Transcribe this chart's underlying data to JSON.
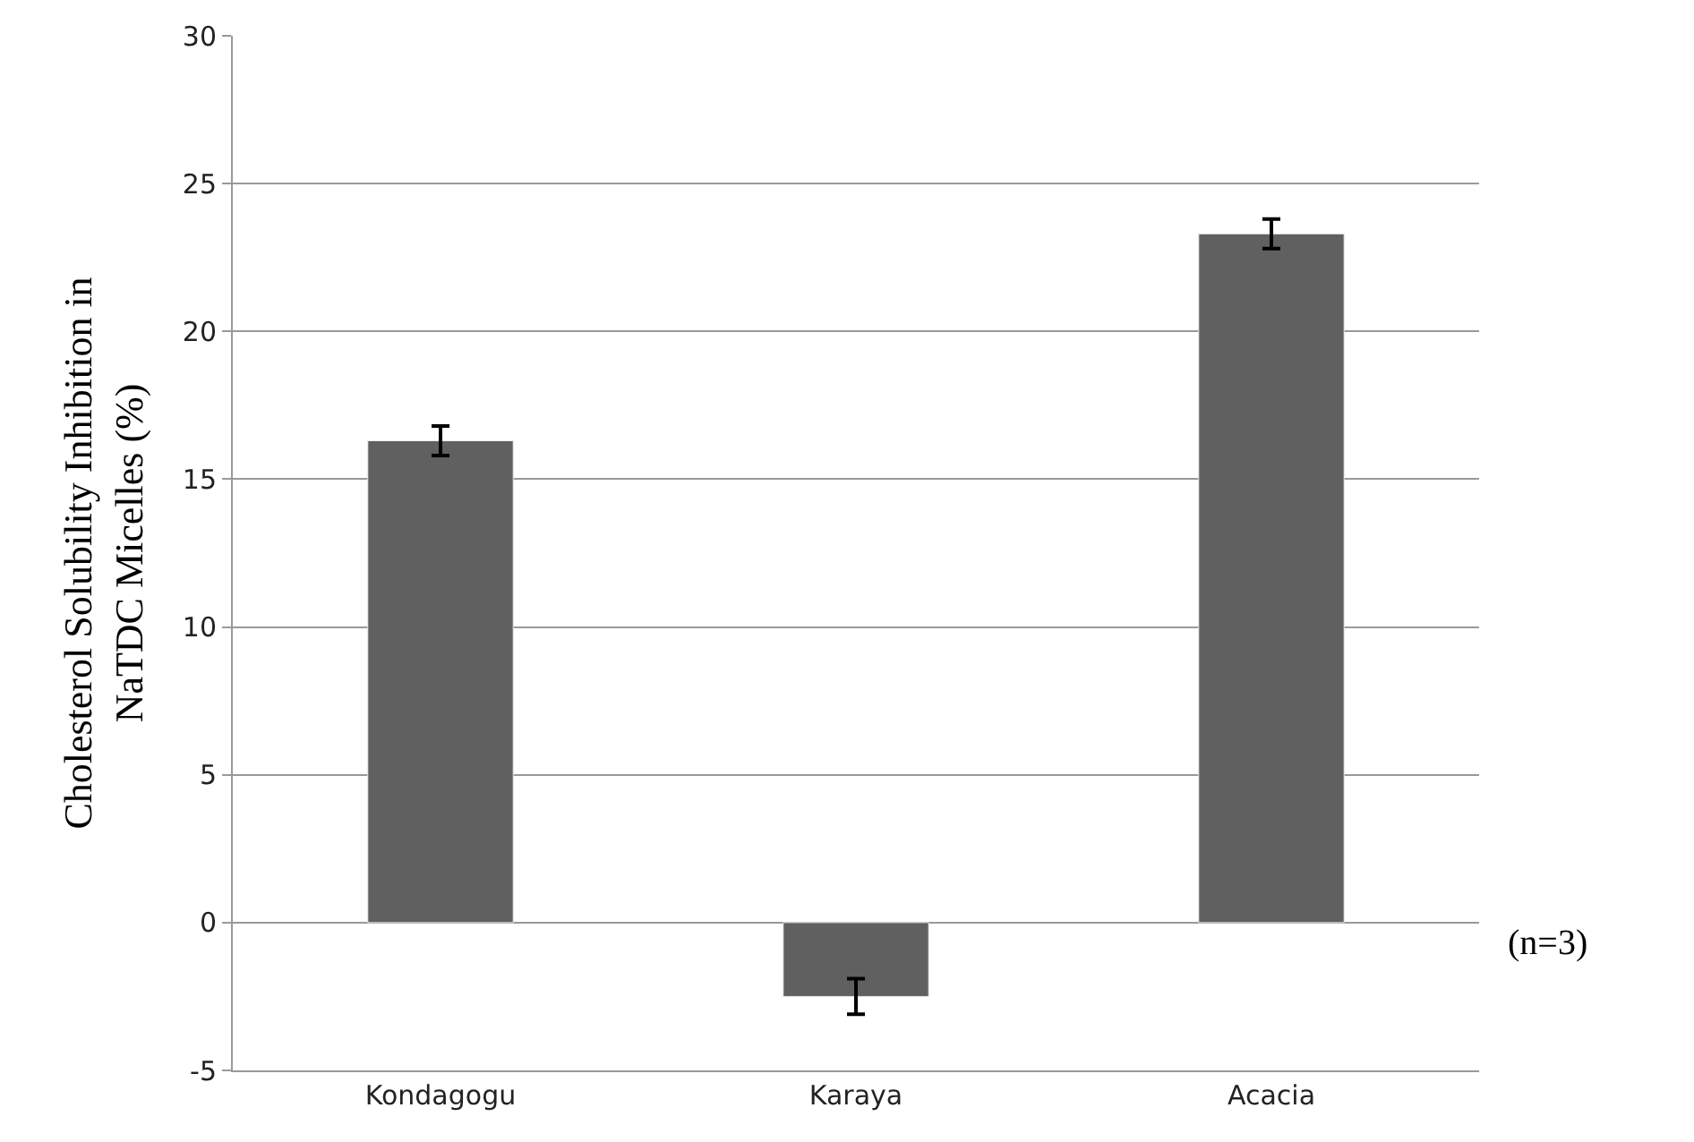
{
  "chart_data": {
    "type": "bar",
    "ylabel": "Cholesterol Solubility Inhibition in NaTDC Micelles (%)",
    "categories": [
      "Kondagogu",
      "Karaya",
      "Acacia"
    ],
    "values": [
      16.3,
      -2.5,
      23.3
    ],
    "color": "#606060",
    "errors": [
      0.5,
      0.6,
      0.5
    ],
    "ylim": [
      -5,
      30
    ],
    "yticks": [
      -5,
      0,
      5,
      10,
      15,
      20,
      25,
      30
    ],
    "grid": "y",
    "legend": false,
    "annotations": [
      "(n=3)"
    ]
  }
}
